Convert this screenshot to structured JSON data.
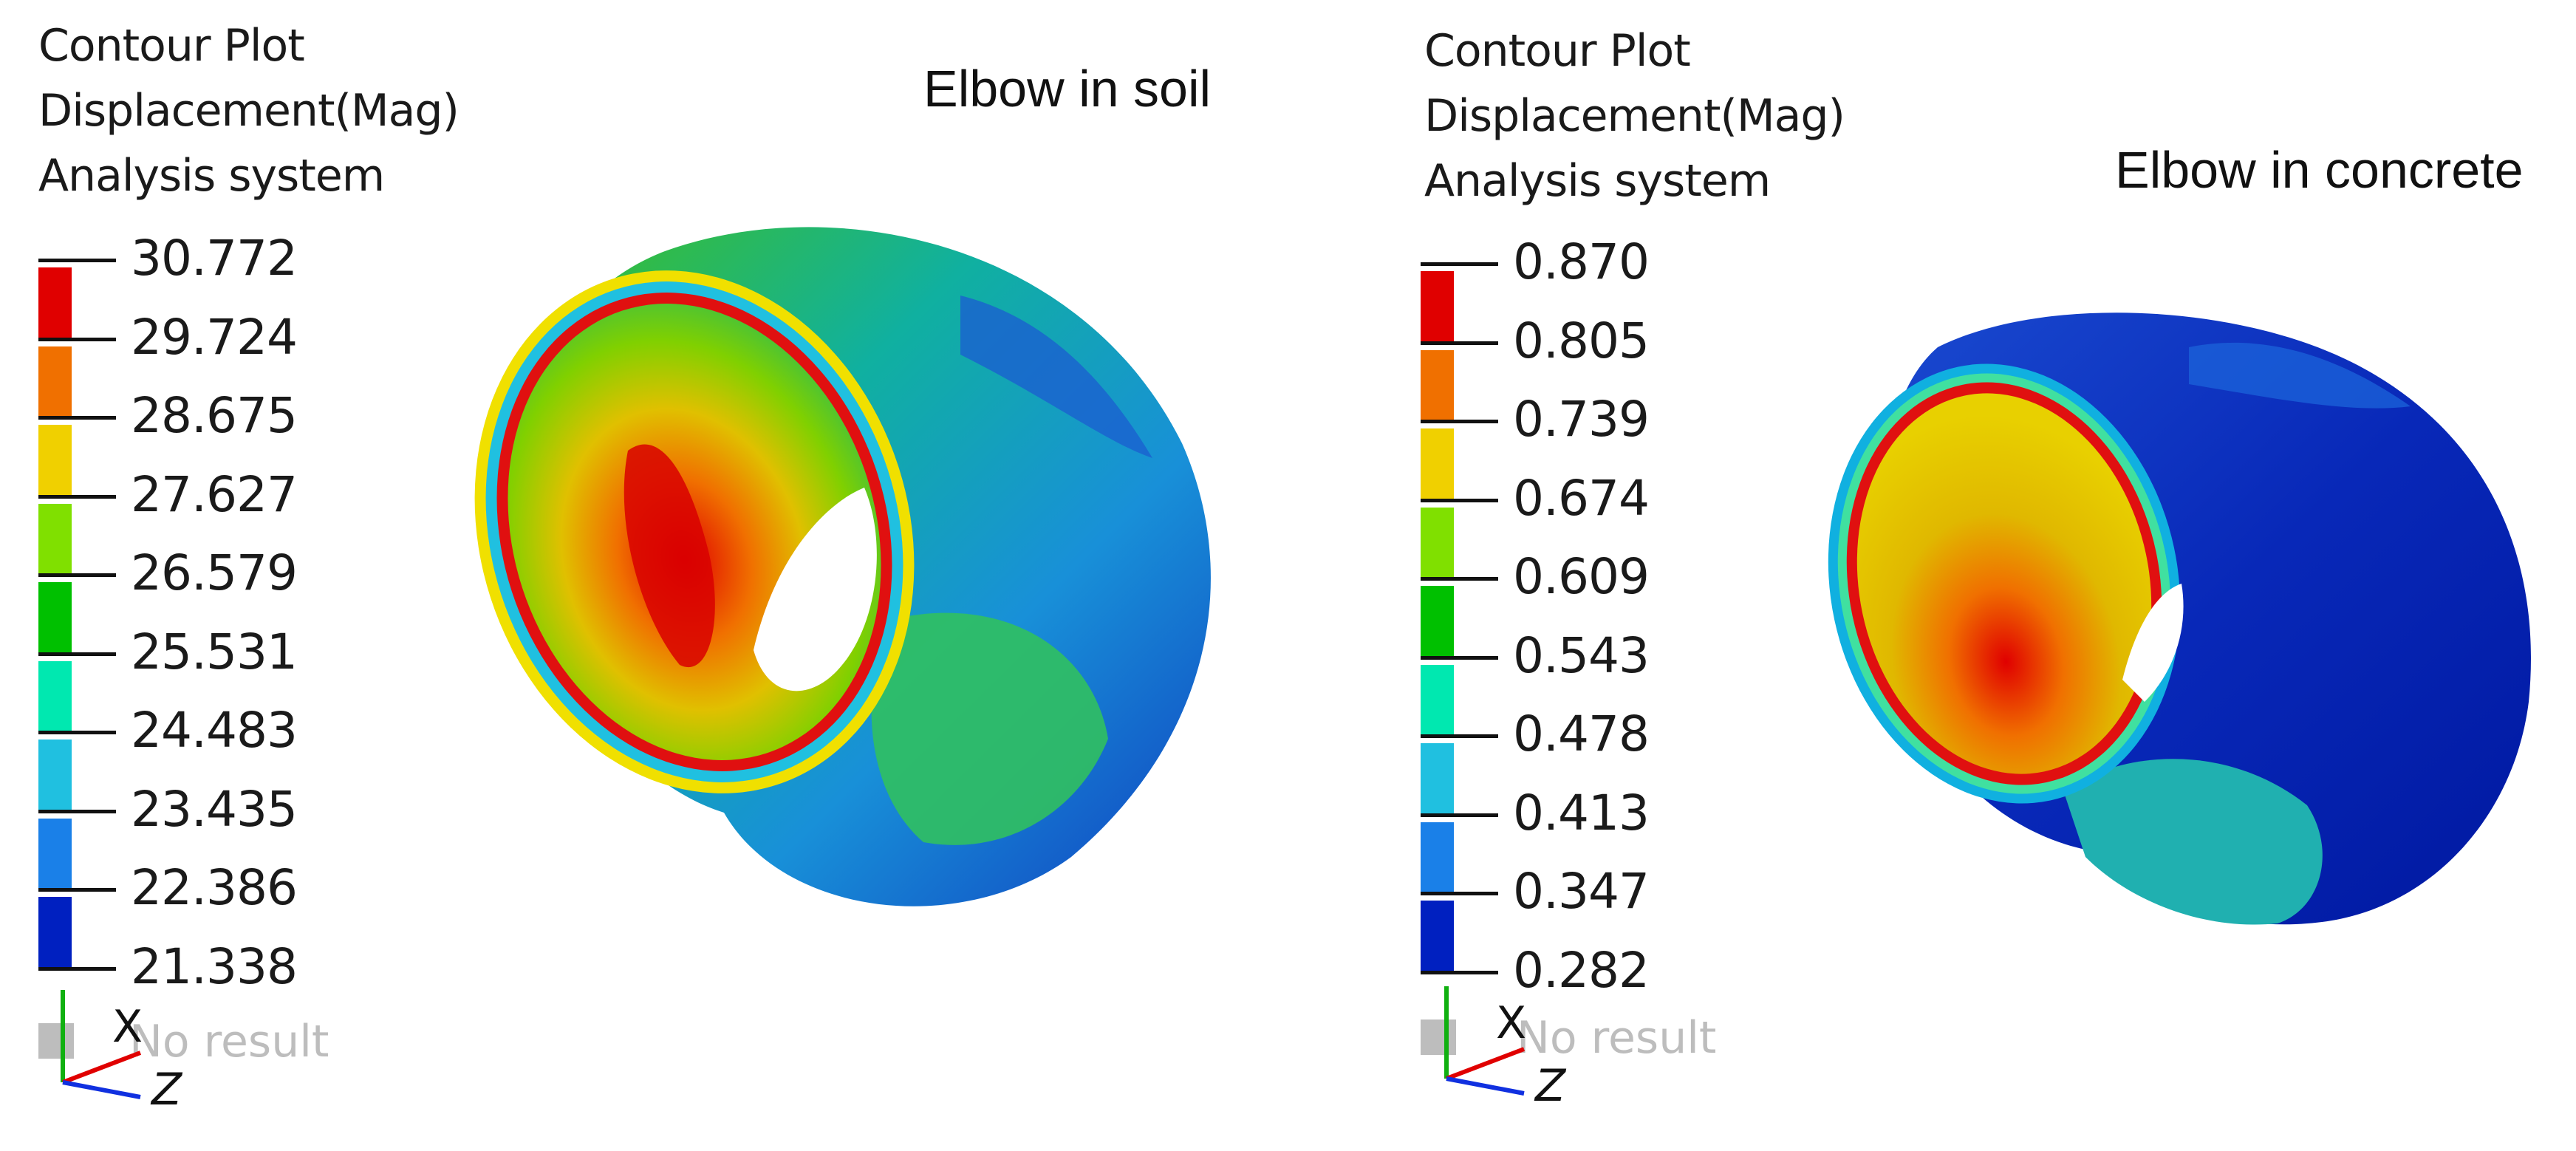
{
  "panels": [
    {
      "header": [
        "Contour Plot",
        "Displacement(Mag)",
        "Analysis system"
      ],
      "title": "Elbow in soil",
      "legend_values": [
        "30.772",
        "29.724",
        "28.675",
        "27.627",
        "26.579",
        "25.531",
        "24.483",
        "23.435",
        "22.386",
        "21.338"
      ],
      "no_result": "No result",
      "axes": {
        "x": "X",
        "z": "Z"
      }
    },
    {
      "header": [
        "Contour Plot",
        "Displacement(Mag)",
        "Analysis system"
      ],
      "title": "Elbow in concrete",
      "legend_values": [
        "0.870",
        "0.805",
        "0.739",
        "0.674",
        "0.609",
        "0.543",
        "0.478",
        "0.413",
        "0.347",
        "0.282"
      ],
      "no_result": "No result",
      "axes": {
        "x": "X",
        "z": "Z"
      }
    }
  ],
  "colors": {
    "contour_scale": [
      "#e00000",
      "#f07000",
      "#f0d000",
      "#80e000",
      "#00c000",
      "#00e8b0",
      "#20c0e0",
      "#1a80e8",
      "#0020c0"
    ],
    "no_result": "#bdbdbd"
  }
}
